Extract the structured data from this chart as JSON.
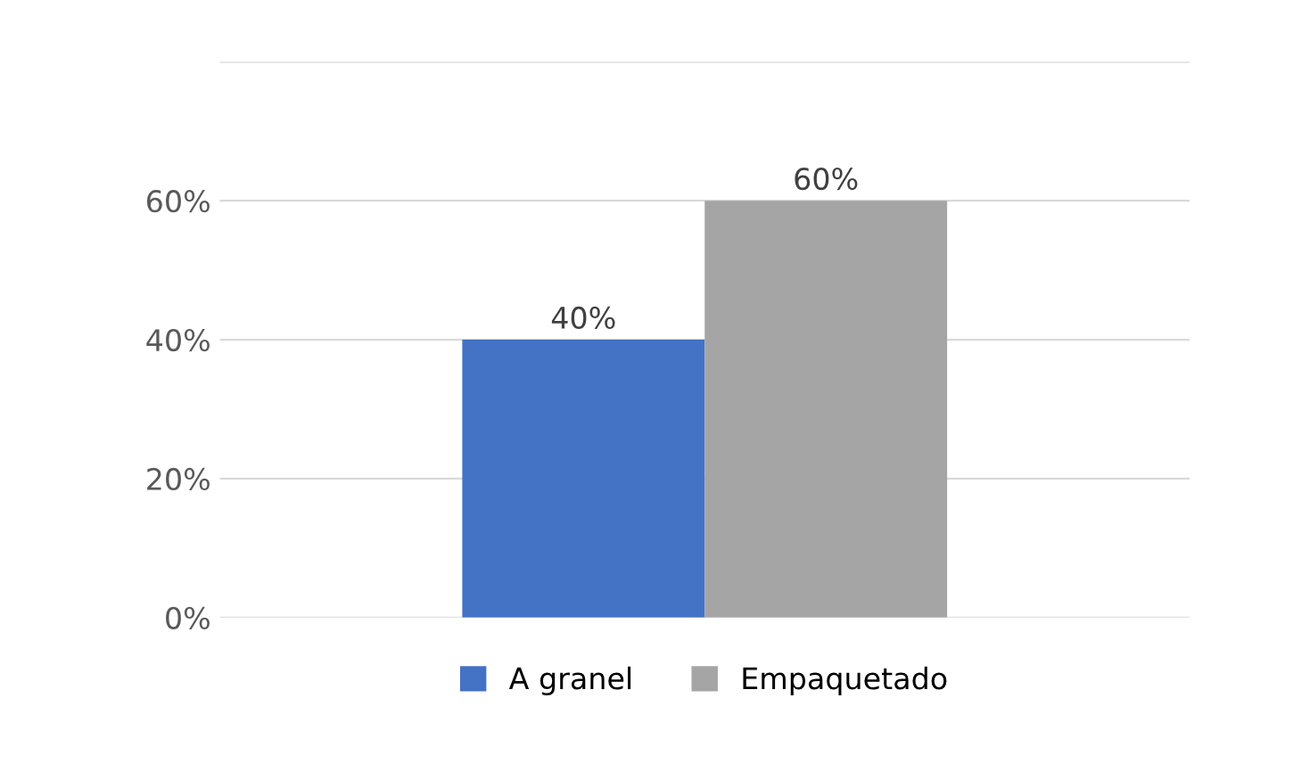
{
  "chart_data": {
    "type": "bar",
    "categories": [
      null
    ],
    "series": [
      {
        "name": "A granel",
        "color": "#4472c4",
        "values": [
          40
        ],
        "value_labels": [
          "40%"
        ]
      },
      {
        "name": "Empaquetado",
        "color": "#a5a5a5",
        "values": [
          60
        ],
        "value_labels": [
          "60%"
        ]
      }
    ],
    "ylim": [
      0,
      80
    ],
    "yticks": [
      {
        "value": 0,
        "label": "0%"
      },
      {
        "value": 20,
        "label": "20%"
      },
      {
        "value": 40,
        "label": "40%"
      },
      {
        "value": 60,
        "label": "60%"
      },
      {
        "value": 80,
        "label": null
      }
    ],
    "grid": "y",
    "legend": "bottom"
  }
}
